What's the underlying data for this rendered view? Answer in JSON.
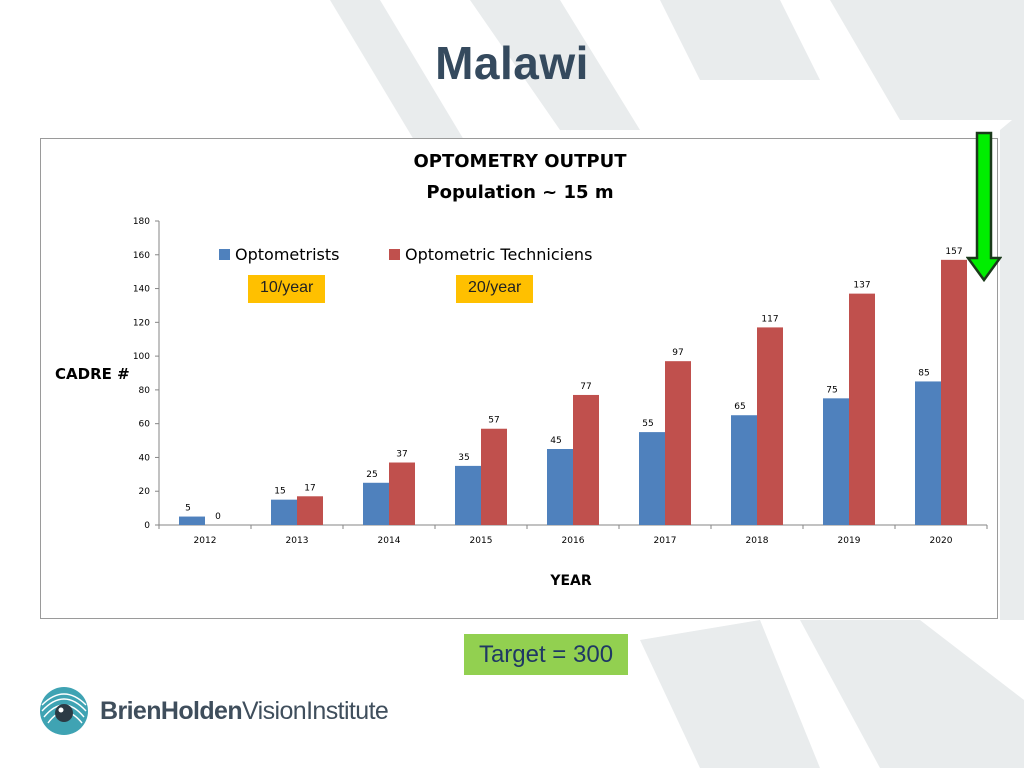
{
  "slide": {
    "title": "Malawi"
  },
  "chart_data": {
    "type": "bar",
    "title": "OPTOMETRY OUTPUT",
    "subtitle": "Population ~ 15 m",
    "xlabel": "YEAR",
    "ylabel": "CADRE #",
    "ylim": [
      0,
      180
    ],
    "yticks": [
      0,
      20,
      40,
      60,
      80,
      100,
      120,
      140,
      160,
      180
    ],
    "categories": [
      "2012",
      "2013",
      "2014",
      "2015",
      "2016",
      "2017",
      "2018",
      "2019",
      "2020"
    ],
    "series": [
      {
        "name": "Optometrists",
        "color": "#4f81bd",
        "values": [
          5,
          15,
          25,
          35,
          45,
          55,
          65,
          75,
          85
        ]
      },
      {
        "name": "Optometric Techniciens",
        "color": "#c0504d",
        "values": [
          0,
          17,
          37,
          57,
          77,
          97,
          117,
          137,
          157
        ]
      }
    ],
    "grid": false,
    "legend_position": "top-left",
    "annotations": {
      "optometrists_rate": "10/year",
      "technicians_rate": "20/year"
    }
  },
  "target": {
    "label": "Target = 300",
    "color": "#92d050"
  },
  "arrow": {
    "color": "#00ee00",
    "direction": "down"
  },
  "logo": {
    "word1": "Brien",
    "word2": "Holden",
    "word3": "Vision",
    "word4": "Institute"
  },
  "colors": {
    "title": "#354a5e",
    "badge": "#ffc000"
  }
}
